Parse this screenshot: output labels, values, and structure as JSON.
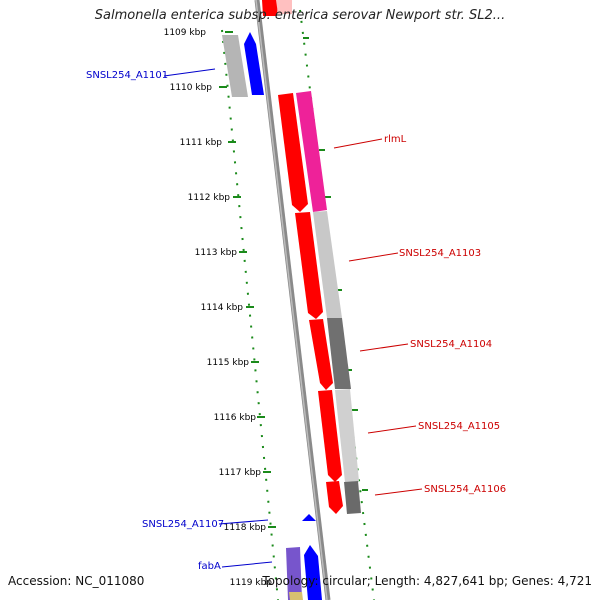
{
  "title": "Salmonella enterica subsp. enterica serovar Newport str. SL2...",
  "footer": {
    "accession": "Accession: NC_011080",
    "topology": "Topology: circular; Length: 4,827,641 bp; Genes: 4,721"
  },
  "ticks": [
    "1109 kbp",
    "1110 kbp",
    "1111 kbp",
    "1112 kbp",
    "1113 kbp",
    "1114 kbp",
    "1115 kbp",
    "1116 kbp",
    "1117 kbp",
    "1118 kbp",
    "1119 kbp"
  ],
  "gene_labels": [
    {
      "text": "SNSL254_A1101",
      "color": "#0000cc"
    },
    {
      "text": "rlmL",
      "color": "#cc0000"
    },
    {
      "text": "SNSL254_A1103",
      "color": "#cc0000"
    },
    {
      "text": "SNSL254_A1104",
      "color": "#cc0000"
    },
    {
      "text": "SNSL254_A1105",
      "color": "#cc0000"
    },
    {
      "text": "SNSL254_A1106",
      "color": "#cc0000"
    },
    {
      "text": "SNSL254_A1107",
      "color": "#0000cc"
    },
    {
      "text": "fabA",
      "color": "#0000cc"
    }
  ],
  "colors": {
    "forward": "#ff0000",
    "reverse": "#0000ff",
    "rrna_pink": "#ee2299",
    "gray_light": "#c8c8c8",
    "gray_dark": "#707070",
    "tick": "#1a8a1a",
    "backbone": "#7a7a7a"
  }
}
